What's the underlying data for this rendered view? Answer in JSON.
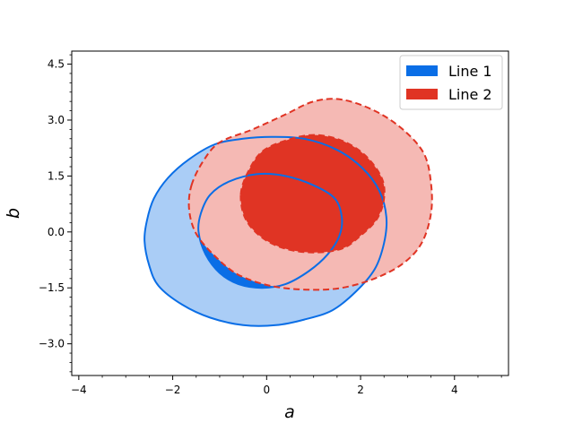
{
  "chart_data": {
    "type": "contour",
    "title": "",
    "xlabel": "a",
    "ylabel": "b",
    "xlim": [
      -4.15,
      5.15
    ],
    "ylim": [
      -3.85,
      4.85
    ],
    "xticks": [
      {
        "value": -4,
        "label": "−4"
      },
      {
        "value": -2,
        "label": "−2"
      },
      {
        "value": 0,
        "label": "0"
      },
      {
        "value": 2,
        "label": "2"
      },
      {
        "value": 4,
        "label": "4"
      }
    ],
    "yticks": [
      {
        "value": -3.0,
        "label": "−3.0"
      },
      {
        "value": -1.5,
        "label": "−1.5"
      },
      {
        "value": 0.0,
        "label": "0.0"
      },
      {
        "value": 1.5,
        "label": "1.5"
      },
      {
        "value": 3.0,
        "label": "3.0"
      },
      {
        "value": 4.5,
        "label": "4.5"
      }
    ],
    "legend": {
      "placement": "top-right"
    },
    "series": [
      {
        "name": "Line 1",
        "color": "#0a6ee6",
        "light_color": "#aacdf6",
        "linestyle": "solid",
        "contours": [
          {
            "level": "outer",
            "points": [
              [
                -2.55,
                0.3
              ],
              [
                -2.4,
                0.9
              ],
              [
                -2.1,
                1.45
              ],
              [
                -1.65,
                1.95
              ],
              [
                -1.1,
                2.35
              ],
              [
                -0.5,
                2.5
              ],
              [
                0.1,
                2.55
              ],
              [
                0.8,
                2.5
              ],
              [
                1.5,
                2.2
              ],
              [
                2.05,
                1.7
              ],
              [
                2.4,
                1.1
              ],
              [
                2.55,
                0.4
              ],
              [
                2.5,
                -0.3
              ],
              [
                2.3,
                -1.0
              ],
              [
                1.9,
                -1.6
              ],
              [
                1.4,
                -2.1
              ],
              [
                0.8,
                -2.35
              ],
              [
                0.2,
                -2.5
              ],
              [
                -0.5,
                -2.5
              ],
              [
                -1.2,
                -2.3
              ],
              [
                -1.8,
                -1.95
              ],
              [
                -2.3,
                -1.45
              ],
              [
                -2.5,
                -0.9
              ],
              [
                -2.6,
                -0.25
              ]
            ]
          },
          {
            "level": "inner",
            "points": [
              [
                -1.45,
                0.0
              ],
              [
                -1.4,
                0.5
              ],
              [
                -1.2,
                1.0
              ],
              [
                -0.8,
                1.35
              ],
              [
                -0.2,
                1.55
              ],
              [
                0.4,
                1.5
              ],
              [
                1.0,
                1.25
              ],
              [
                1.45,
                0.9
              ],
              [
                1.6,
                0.4
              ],
              [
                1.55,
                -0.1
              ],
              [
                1.3,
                -0.6
              ],
              [
                0.9,
                -1.05
              ],
              [
                0.4,
                -1.4
              ],
              [
                -0.1,
                -1.5
              ],
              [
                -0.6,
                -1.4
              ],
              [
                -1.0,
                -1.1
              ],
              [
                -1.3,
                -0.6
              ]
            ]
          }
        ]
      },
      {
        "name": "Line 2",
        "color": "#e03424",
        "light_color": "#f5b9b4",
        "linestyle": "dashed",
        "contours": [
          {
            "level": "outer",
            "points": [
              [
                -1.6,
                1.25
              ],
              [
                -1.35,
                1.9
              ],
              [
                -1.0,
                2.4
              ],
              [
                -0.3,
                2.75
              ],
              [
                0.4,
                3.15
              ],
              [
                1.0,
                3.5
              ],
              [
                1.6,
                3.55
              ],
              [
                2.3,
                3.25
              ],
              [
                2.9,
                2.75
              ],
              [
                3.35,
                2.1
              ],
              [
                3.5,
                1.3
              ],
              [
                3.5,
                0.5
              ],
              [
                3.3,
                -0.3
              ],
              [
                2.9,
                -0.85
              ],
              [
                2.3,
                -1.25
              ],
              [
                1.6,
                -1.5
              ],
              [
                0.9,
                -1.55
              ],
              [
                0.1,
                -1.45
              ],
              [
                -0.6,
                -1.15
              ],
              [
                -1.1,
                -0.65
              ],
              [
                -1.5,
                -0.05
              ],
              [
                -1.65,
                0.6
              ]
            ]
          },
          {
            "level": "inner",
            "points": [
              [
                -0.55,
                1.0
              ],
              [
                -0.4,
                1.6
              ],
              [
                -0.1,
                2.15
              ],
              [
                0.4,
                2.45
              ],
              [
                1.0,
                2.6
              ],
              [
                1.6,
                2.45
              ],
              [
                2.1,
                2.05
              ],
              [
                2.45,
                1.45
              ],
              [
                2.5,
                0.9
              ],
              [
                2.35,
                0.35
              ],
              [
                2.0,
                -0.1
              ],
              [
                1.6,
                -0.45
              ],
              [
                1.0,
                -0.55
              ],
              [
                0.4,
                -0.45
              ],
              [
                -0.1,
                -0.15
              ],
              [
                -0.45,
                0.35
              ]
            ]
          }
        ]
      }
    ]
  }
}
